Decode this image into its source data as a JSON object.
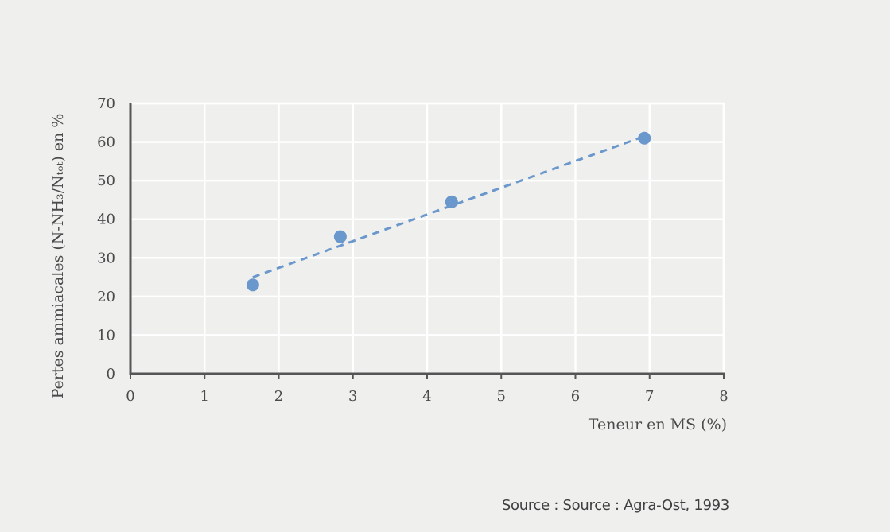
{
  "chart_data": {
    "type": "scatter",
    "xlabel": "Teneur en MS (%)",
    "ylabel": "Pertes ammiacales (N-NH₃/Nₜₒₜ) en %",
    "xlim": [
      0,
      8
    ],
    "ylim": [
      0,
      70
    ],
    "x_ticks": [
      "0",
      "1",
      "2",
      "3",
      "4",
      "5",
      "6",
      "7",
      "8"
    ],
    "y_ticks": [
      "0",
      "10",
      "20",
      "30",
      "40",
      "50",
      "60",
      "70"
    ],
    "grid": true,
    "points": [
      {
        "x": 1.65,
        "y": 23
      },
      {
        "x": 2.83,
        "y": 35.5
      },
      {
        "x": 4.33,
        "y": 44.5
      },
      {
        "x": 6.93,
        "y": 61
      }
    ],
    "trendline": {
      "x": [
        1.65,
        6.93
      ],
      "y": [
        25,
        61.5
      ],
      "style": "dashed"
    },
    "point_color": "#6a97cc",
    "trend_color": "#6a97cc"
  },
  "source": "Source : Source : Agra-Ost, 1993"
}
